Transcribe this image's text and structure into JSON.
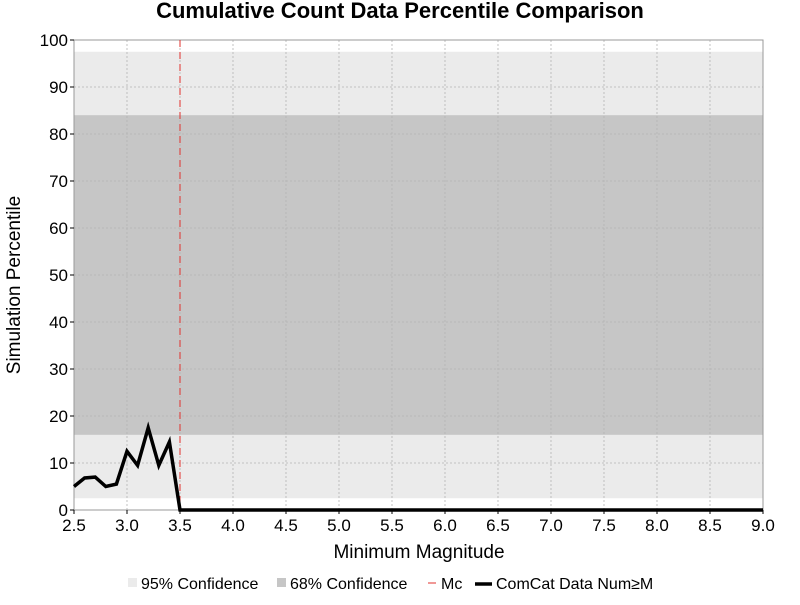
{
  "chart_data": {
    "type": "line",
    "title": "Cumulative Count Data Percentile Comparison",
    "xlabel": "Minimum Magnitude",
    "ylabel": "Simulation Percentile",
    "xlim": [
      2.5,
      9.0
    ],
    "ylim": [
      0,
      100
    ],
    "x_ticks": [
      "2.5",
      "3.0",
      "3.5",
      "4.0",
      "4.5",
      "5.0",
      "5.5",
      "6.0",
      "6.5",
      "7.0",
      "7.5",
      "8.0",
      "8.5",
      "9.0"
    ],
    "y_ticks": [
      "0",
      "10",
      "20",
      "30",
      "40",
      "50",
      "60",
      "70",
      "80",
      "90",
      "100"
    ],
    "grid": true,
    "bands": [
      {
        "name": "95% Confidence",
        "low": 2.5,
        "high": 97.5,
        "color": "#ebebeb"
      },
      {
        "name": "68% Confidence",
        "low": 16,
        "high": 84,
        "color": "#c6c6c6"
      }
    ],
    "mc": {
      "name": "Mc",
      "x": 3.5,
      "color": "#e0322e"
    },
    "series": [
      {
        "name": "ComCat Data Num≥M",
        "color": "#000000",
        "x": [
          2.5,
          2.6,
          2.7,
          2.8,
          2.9,
          3.0,
          3.1,
          3.2,
          3.3,
          3.4,
          3.5,
          3.6,
          9.0
        ],
        "y": [
          5,
          6.8,
          7,
          5,
          5.5,
          12.5,
          9.5,
          17.5,
          9.5,
          14.5,
          0,
          0,
          0
        ]
      }
    ]
  },
  "legend": {
    "position": "bottom",
    "items": [
      {
        "label": "95% Confidence",
        "kind": "swatch",
        "color": "#ebebeb"
      },
      {
        "label": "68% Confidence",
        "kind": "swatch",
        "color": "#c6c6c6"
      },
      {
        "label": "Mc",
        "kind": "dash",
        "color": "#e0322e"
      },
      {
        "label": "ComCat Data Num≥M",
        "kind": "line",
        "color": "#000000"
      }
    ]
  }
}
